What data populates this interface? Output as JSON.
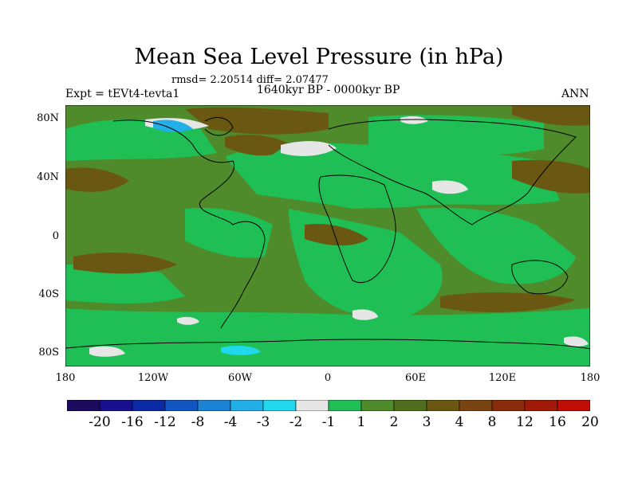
{
  "title": "Mean Sea Level Pressure (in hPa)",
  "stats": "rmsd= 2.20514  diff= 2.07477",
  "period": "1640kyr BP - 0000kyr BP",
  "experiment": "Expt = tEVt4-tevta1",
  "season": "ANN",
  "lat_labels": [
    "80N",
    "40N",
    "0",
    "40S",
    "80S"
  ],
  "lon_labels": [
    "180",
    "120W",
    "60W",
    "0",
    "60E",
    "120E",
    "180"
  ],
  "colorbar": {
    "colors": [
      "#1c0a5e",
      "#17108f",
      "#0c2aa6",
      "#1256c4",
      "#1c82d4",
      "#22aee6",
      "#20d8ec",
      "#e6e6e6",
      "#1fbf55",
      "#4f8a2b",
      "#4f6e1c",
      "#6a5812",
      "#7a4410",
      "#8a2c0c",
      "#a11a08",
      "#c00d05"
    ],
    "labels": [
      "-20",
      "-16",
      "-12",
      "-8",
      "-4",
      "-3",
      "-2",
      "-1",
      "1",
      "2",
      "3",
      "4",
      "8",
      "12",
      "16",
      "20"
    ]
  }
}
